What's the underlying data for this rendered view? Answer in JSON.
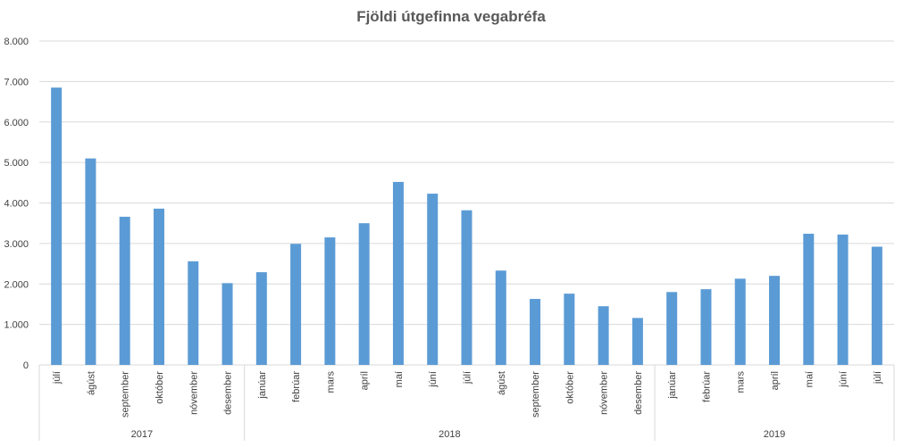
{
  "chart_data": {
    "type": "bar",
    "title": "Fjöldi útgefinna vegabréfa",
    "xlabel": "",
    "ylabel": "",
    "ylim": [
      0,
      8000
    ],
    "yticks": [
      "0",
      "1.000",
      "2.000",
      "3.000",
      "4.000",
      "5.000",
      "6.000",
      "7.000",
      "8.000"
    ],
    "grid": true,
    "bar_color": "#5b9bd5",
    "categories": [
      "júlí",
      "ágúst",
      "september",
      "október",
      "nóvember",
      "desember",
      "janúar",
      "febrúar",
      "mars",
      "apríl",
      "maí",
      "júní",
      "júlí",
      "ágúst",
      "september",
      "október",
      "nóvember",
      "desember",
      "janúar",
      "febrúar",
      "mars",
      "apríl",
      "maí",
      "júní",
      "júlí"
    ],
    "values": [
      6850,
      5100,
      3660,
      3860,
      2560,
      2020,
      2290,
      2990,
      3150,
      3500,
      4520,
      4230,
      3820,
      2330,
      1630,
      1760,
      1450,
      1160,
      1800,
      1870,
      2130,
      2200,
      3240,
      3220,
      2920
    ],
    "groups": [
      {
        "label": "2017",
        "count": 6
      },
      {
        "label": "2018",
        "count": 12
      },
      {
        "label": "2019",
        "count": 7
      }
    ]
  }
}
